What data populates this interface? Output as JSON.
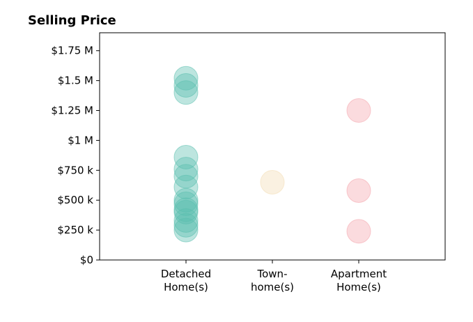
{
  "chart_data": {
    "type": "scatter",
    "title": "Selling Price",
    "xlabel": "",
    "ylabel": "",
    "categories": [
      [
        "Detached",
        "Home(s)"
      ],
      [
        "Town-",
        "home(s)"
      ],
      [
        "Apartment",
        "Home(s)"
      ]
    ],
    "ylim": [
      0,
      1900000
    ],
    "yticks": [
      0,
      250000,
      500000,
      750000,
      1000000,
      1250000,
      1500000,
      1750000
    ],
    "ytick_labels": [
      "$0",
      "$250 k",
      "$500 k",
      "$750 k",
      "$1 M",
      "$1.25 M",
      "$1.5 M",
      "$1.75 M"
    ],
    "grid": false,
    "series": [
      {
        "category_index": 0,
        "color": "#5bbfae",
        "values": [
          1520000,
          1460000,
          1400000,
          860000,
          760000,
          700000,
          610000,
          500000,
          470000,
          420000,
          400000,
          330000,
          290000,
          250000
        ]
      },
      {
        "category_index": 1,
        "color": "#f3ddb3",
        "values": [
          650000
        ]
      },
      {
        "category_index": 2,
        "color": "#f4a4ac",
        "values": [
          1250000,
          580000,
          240000
        ]
      }
    ]
  }
}
